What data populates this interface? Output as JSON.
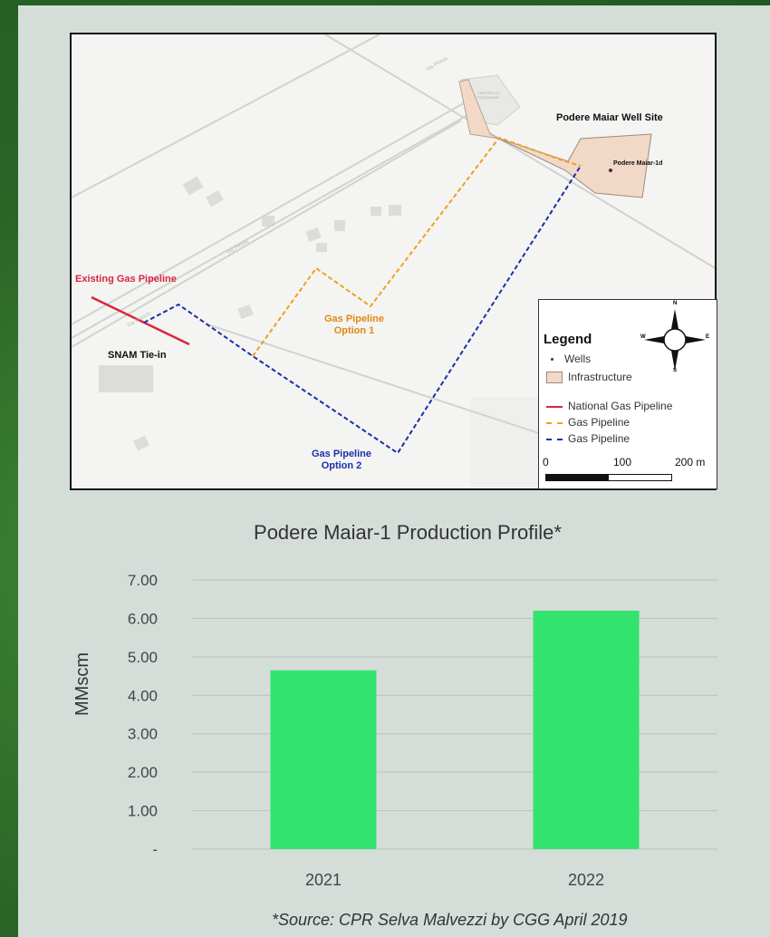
{
  "map": {
    "labels": {
      "well_site": "Podere Maiar Well Site",
      "well_name": "Podere Maiar-1d",
      "existing_pipeline": "Existing Gas Pipeline",
      "snam_tiein": "SNAM Tie-in",
      "option1_line1": "Gas Pipeline",
      "option1_line2": "Option 1",
      "option2_line1": "Gas Pipeline",
      "option2_line2": "Option 2",
      "road1": "Via Pireas",
      "road2": "Via Piancic",
      "road3": "Via Pireas",
      "cemetery": "CIMITERO DI PRIZZIDANE"
    },
    "legend": {
      "title": "Legend",
      "items": [
        {
          "label": "Wells",
          "kind": "dot",
          "color": "#333333"
        },
        {
          "label": "Infrastructure",
          "kind": "box",
          "color": "#f2d9c7"
        },
        {
          "label": "National Gas Pipeline",
          "kind": "line",
          "color": "#d9263b"
        },
        {
          "label": "Gas Pipeline",
          "kind": "dash",
          "color": "#f0a020"
        },
        {
          "label": "Gas Pipeline",
          "kind": "dash",
          "color": "#1b2fa8"
        }
      ],
      "compass": [
        "N",
        "E",
        "S",
        "W"
      ],
      "scale": [
        "0",
        "100",
        "200 m"
      ]
    },
    "colors": {
      "national": "#d9263b",
      "option1": "#f0a020",
      "option2": "#1b2fa8",
      "infrastructure": "#f2d9c7"
    }
  },
  "chart_data": {
    "type": "bar",
    "title": "Podere Maiar-1 Production Profile*",
    "ylabel": "MMscm",
    "categories": [
      "2021",
      "2022"
    ],
    "values": [
      4.65,
      6.2
    ],
    "ylim": [
      0,
      7
    ],
    "yticks": [
      "-",
      "1.00",
      "2.00",
      "3.00",
      "4.00",
      "5.00",
      "6.00",
      "7.00"
    ],
    "grid": true,
    "bar_color": "#32e36e"
  },
  "source_note": "*Source: CPR Selva Malvezzi by CGG April 2019"
}
